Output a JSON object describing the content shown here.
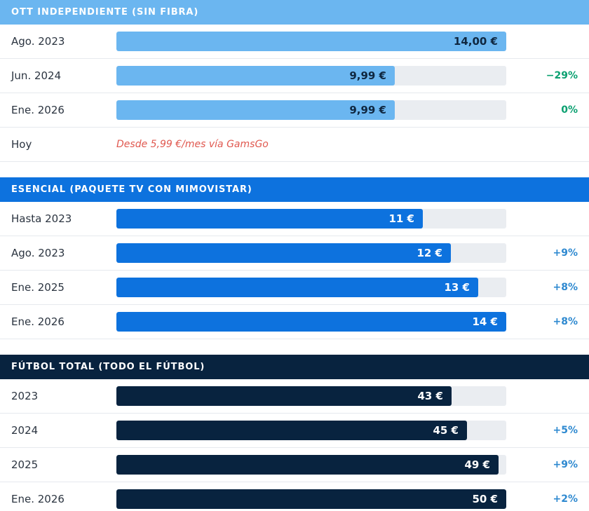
{
  "colors": {
    "ott": "#6bb6f0",
    "esencial": "#0d72de",
    "futbol": "#08233f",
    "track": "#eaedf1",
    "change_green": "#0aa070",
    "change_blue": "#2e89d0",
    "note_red": "#e0584f"
  },
  "chart_data": {
    "type": "bar",
    "orientation": "horizontal",
    "xlim": [
      0,
      14
    ],
    "groups": [
      {
        "title": "OTT INDEPENDIENTE (SIN FIBRA)",
        "color_key": "ott",
        "max": 14,
        "value_color": "#0f2740",
        "rows": [
          {
            "label": "Ago. 2023",
            "value": 14.0,
            "value_label": "14,00 €",
            "change": ""
          },
          {
            "label": "Jun. 2024",
            "value": 9.99,
            "value_label": "9,99 €",
            "change": "−29%",
            "change_color": "change_green"
          },
          {
            "label": "Ene. 2026",
            "value": 9.99,
            "value_label": "9,99 €",
            "change": "0%",
            "change_color": "change_green"
          },
          {
            "label": "Hoy",
            "note": "Desde 5,99 €/mes vía GamsGo"
          }
        ]
      },
      {
        "title": "ESENCIAL (PAQUETE TV CON MIMOVISTAR)",
        "color_key": "esencial",
        "max": 14,
        "value_color": "#ffffff",
        "rows": [
          {
            "label": "Hasta 2023",
            "value": 11,
            "value_label": "11 €",
            "change": ""
          },
          {
            "label": "Ago. 2023",
            "value": 12,
            "value_label": "12 €",
            "change": "+9%",
            "change_color": "change_blue"
          },
          {
            "label": "Ene. 2025",
            "value": 13,
            "value_label": "13 €",
            "change": "+8%",
            "change_color": "change_blue"
          },
          {
            "label": "Ene. 2026",
            "value": 14,
            "value_label": "14 €",
            "change": "+8%",
            "change_color": "change_blue"
          }
        ]
      },
      {
        "title": "FÚTBOL TOTAL (TODO EL FÚTBOL)",
        "color_key": "futbol",
        "max": 50,
        "value_color": "#ffffff",
        "rows": [
          {
            "label": "2023",
            "value": 43,
            "value_label": "43 €",
            "change": ""
          },
          {
            "label": "2024",
            "value": 45,
            "value_label": "45 €",
            "change": "+5%",
            "change_color": "change_blue"
          },
          {
            "label": "2025",
            "value": 49,
            "value_label": "49 €",
            "change": "+9%",
            "change_color": "change_blue"
          },
          {
            "label": "Ene. 2026",
            "value": 50,
            "value_label": "50 €",
            "change": "+2%",
            "change_color": "change_blue"
          }
        ]
      }
    ]
  }
}
